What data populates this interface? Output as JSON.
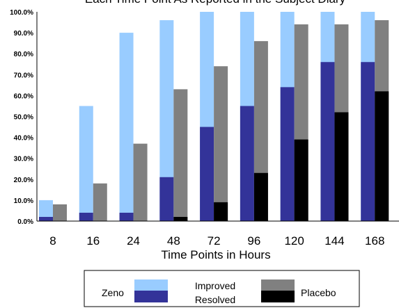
{
  "chart_data": {
    "type": "bar",
    "title": "Each Time Point As Reported in the Subject Diary",
    "xlabel": "Time Points in Hours",
    "ylabel": "",
    "ylim": [
      0,
      100
    ],
    "yticks": [
      "0.0%",
      "10.0%",
      "20.0%",
      "30.0%",
      "40.0%",
      "50.0%",
      "60.0%",
      "70.0%",
      "80.0%",
      "90.0%",
      "100.0%"
    ],
    "categories": [
      "8",
      "16",
      "24",
      "48",
      "72",
      "96",
      "120",
      "144",
      "168"
    ],
    "groups": [
      {
        "name": "Zeno",
        "improved": [
          10,
          55,
          90,
          96,
          100,
          100,
          100,
          100,
          100
        ],
        "resolved": [
          2,
          4,
          4,
          21,
          45,
          55,
          64,
          76,
          76
        ]
      },
      {
        "name": "Placebo",
        "improved": [
          8,
          18,
          37,
          63,
          74,
          86,
          94,
          94,
          96
        ],
        "resolved": [
          0,
          0,
          0,
          2,
          9,
          23,
          39,
          52,
          62
        ]
      }
    ],
    "grid": false,
    "legend": {
      "placement": "bottom",
      "groups": [
        "Zeno",
        "Placebo"
      ],
      "measures": [
        "Improved",
        "Resolved"
      ]
    },
    "colors": {
      "zeno_improved": "#99ccff",
      "zeno_resolved": "#333399",
      "placebo_improved": "#808080",
      "placebo_resolved": "#000000"
    }
  }
}
